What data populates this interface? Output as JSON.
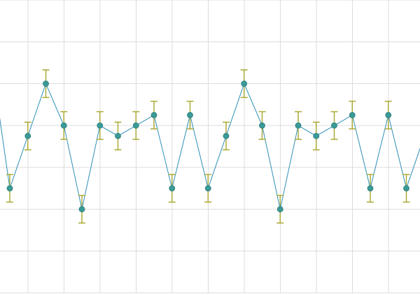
{
  "chart_data": {
    "type": "line",
    "title": "",
    "xlabel": "",
    "ylabel": "",
    "grid": true,
    "xlim": [
      0,
      24
    ],
    "ylim": [
      -2,
      5
    ],
    "x": [
      -0.5,
      0.5,
      1.5,
      2.5,
      3.5,
      4.5,
      5.5,
      6.5,
      7.5,
      8.5,
      9.5,
      10.5,
      11.5,
      12.5,
      13.5,
      14.5,
      15.5,
      16.5,
      17.5,
      18.5,
      19.5,
      20.5,
      21.5,
      22.5,
      23.5,
      24.5
    ],
    "series": [
      {
        "values": [
          3.5,
          0.5,
          1.75,
          3.0,
          2.0,
          0.0,
          2.0,
          1.75,
          2.0,
          2.25,
          0.5,
          2.25,
          0.5,
          1.75,
          3.0,
          2.0,
          0.0,
          2.0,
          1.75,
          2.0,
          2.25,
          0.5,
          2.25,
          0.5,
          1.75,
          3.0
        ],
        "errors": [
          0.33,
          0.33,
          0.33,
          0.33,
          0.33,
          0.33,
          0.33,
          0.33,
          0.33,
          0.33,
          0.33,
          0.33,
          0.33,
          0.33,
          0.33,
          0.33,
          0.33,
          0.33,
          0.33,
          0.33,
          0.33,
          0.33,
          0.33,
          0.33,
          0.33,
          0.33
        ],
        "line_color": "#2e8fb8",
        "marker_color": "#3a9a96",
        "error_color": "#a8a52a"
      }
    ]
  }
}
